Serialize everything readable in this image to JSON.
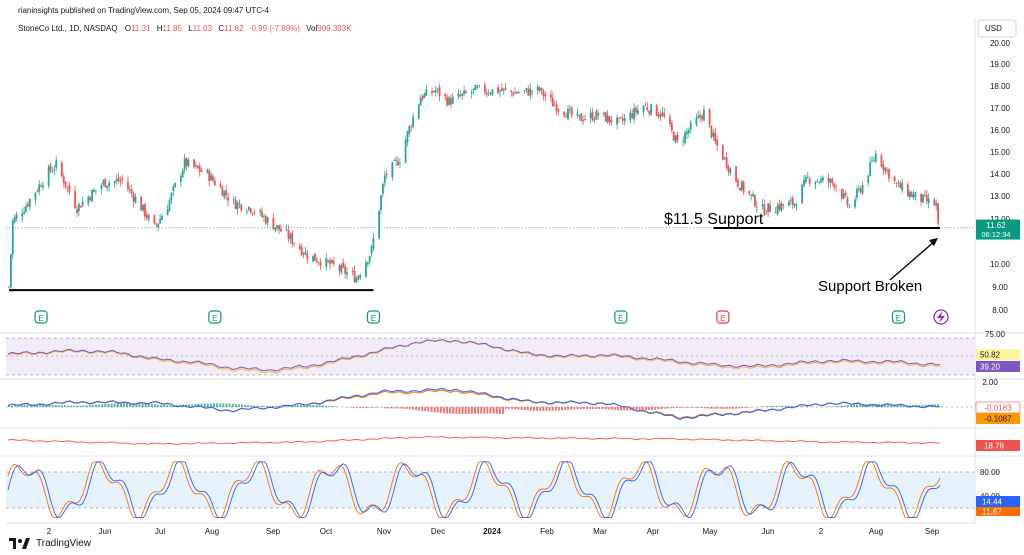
{
  "header": {
    "publisher": "rianinsights published on TradingView.com, Sep 05, 2024 09:47 UTC-4",
    "symbol": "StoneCo Ltd., 1D, NASDAQ",
    "o_label": "O",
    "o_value": "11.31",
    "h_label": "H",
    "h_value": "11.85",
    "l_label": "L",
    "l_value": "11.03",
    "c_label": "C",
    "c_value": "11.62",
    "change": "-0.99 (-7.89%)",
    "vol_label": "Vol",
    "vol_value": "909.393K"
  },
  "currency": "USD",
  "annotations": {
    "support_label": "$11.5 Support",
    "broken_label": "Support Broken"
  },
  "price_badge": {
    "value": "11.62",
    "countdown": "06:12:34"
  },
  "footer": {
    "logo_text": "TradingView"
  },
  "colors": {
    "up": "#26a69a",
    "down": "#ef5350",
    "rsi_line": "#7e57c2",
    "rsi_ma": "#f2b544",
    "macd_line": "#2962ff",
    "signal_line": "#ff6d00",
    "red_line": "#ef5350",
    "stoch_k": "#2962ff",
    "stoch_d": "#ff6d00",
    "badge_green": "#089981",
    "rsi_badge_yellow": "#fff59d",
    "rsi_badge_purple": "#7e57c2",
    "earn_green": "#089981",
    "earn_red": "#f23645"
  },
  "chart_data": [
    {
      "type": "candlestick",
      "title": "StoneCo Ltd., 1D, NASDAQ",
      "ylim": [
        8,
        20
      ],
      "y_ticks": [
        "20.00",
        "19.00",
        "18.00",
        "17.00",
        "16.00",
        "15.00",
        "14.00",
        "13.00",
        "12.00",
        "10.00",
        "9.00",
        "8.00"
      ],
      "x_ticks": [
        "2",
        "Jun",
        "Jul",
        "Aug",
        "Sep",
        "Oct",
        "Nov",
        "Dec",
        "2024",
        "Feb",
        "Mar",
        "Apr",
        "May",
        "Jun",
        "2",
        "Aug",
        "Sep"
      ],
      "close_path": [
        [
          "2023-05-01",
          9.0
        ],
        [
          "2023-05-03",
          11.9
        ],
        [
          "2023-05-10",
          12.6
        ],
        [
          "2023-05-22",
          14.1
        ],
        [
          "2023-05-26",
          14.4
        ],
        [
          "2023-06-06",
          12.5
        ],
        [
          "2023-06-20",
          13.6
        ],
        [
          "2023-06-30",
          13.7
        ],
        [
          "2023-07-11",
          12.4
        ],
        [
          "2023-07-17",
          11.6
        ],
        [
          "2023-07-24",
          12.6
        ],
        [
          "2023-08-02",
          14.5
        ],
        [
          "2023-08-14",
          14.0
        ],
        [
          "2023-08-28",
          12.7
        ],
        [
          "2023-09-06",
          12.5
        ],
        [
          "2023-09-25",
          11.3
        ],
        [
          "2023-10-06",
          10.4
        ],
        [
          "2023-10-20",
          9.9
        ],
        [
          "2023-11-01",
          9.4
        ],
        [
          "2023-11-09",
          10.6
        ],
        [
          "2023-11-16",
          13.9
        ],
        [
          "2023-11-24",
          14.7
        ],
        [
          "2023-11-29",
          16.1
        ],
        [
          "2023-12-05",
          17.5
        ],
        [
          "2023-12-13",
          17.8
        ],
        [
          "2023-12-20",
          17.3
        ],
        [
          "2024-01-03",
          17.8
        ],
        [
          "2024-01-16",
          17.8
        ],
        [
          "2024-01-24",
          17.7
        ],
        [
          "2024-02-06",
          17.8
        ],
        [
          "2024-02-13",
          17.2
        ],
        [
          "2024-02-26",
          16.5
        ],
        [
          "2024-03-08",
          16.7
        ],
        [
          "2024-03-19",
          16.3
        ],
        [
          "2024-04-01",
          17.1
        ],
        [
          "2024-04-11",
          16.7
        ],
        [
          "2024-04-19",
          15.4
        ],
        [
          "2024-05-03",
          16.8
        ],
        [
          "2024-05-09",
          15.4
        ],
        [
          "2024-05-21",
          13.6
        ],
        [
          "2024-06-03",
          12.4
        ],
        [
          "2024-06-20",
          12.7
        ],
        [
          "2024-06-27",
          13.8
        ],
        [
          "2024-07-11",
          13.6
        ],
        [
          "2024-07-19",
          12.5
        ],
        [
          "2024-07-26",
          13.5
        ],
        [
          "2024-08-02",
          14.9
        ],
        [
          "2024-08-13",
          13.5
        ],
        [
          "2024-08-22",
          13.0
        ],
        [
          "2024-09-03",
          12.6
        ],
        [
          "2024-09-04",
          11.62
        ]
      ],
      "support_lines": [
        {
          "from": "2023-05-01",
          "to": "2023-11-10",
          "value": 9.3
        },
        {
          "from": "2024-05-08",
          "to": "2024-09-05",
          "value": 11.6
        }
      ],
      "price_marker": {
        "label": "12.00 region",
        "value": 11.62
      },
      "earnings_markers": [
        {
          "date": "2023-05-18",
          "result": "beat",
          "label": "E"
        },
        {
          "date": "2023-08-18",
          "result": "beat",
          "label": "E"
        },
        {
          "date": "2023-11-10",
          "result": "beat",
          "label": "E"
        },
        {
          "date": "2024-03-20",
          "result": "beat",
          "label": "E"
        },
        {
          "date": "2024-05-13",
          "result": "miss",
          "label": "E"
        },
        {
          "date": "2024-08-14",
          "result": "beat",
          "label": "E"
        }
      ]
    },
    {
      "type": "line",
      "title": "RSI",
      "ylim": [
        25,
        75
      ],
      "y_ticks": [
        "75.00"
      ],
      "last_values": [
        "50.82",
        "39.20"
      ],
      "rsi_path": [
        [
          0,
          55
        ],
        [
          5,
          58
        ],
        [
          10,
          60
        ],
        [
          15,
          57
        ],
        [
          20,
          48
        ],
        [
          25,
          44
        ],
        [
          30,
          36
        ],
        [
          35,
          33
        ],
        [
          40,
          38
        ],
        [
          45,
          48
        ],
        [
          50,
          60
        ],
        [
          55,
          72
        ],
        [
          60,
          74
        ],
        [
          65,
          66
        ],
        [
          70,
          55
        ],
        [
          75,
          52
        ],
        [
          80,
          54
        ],
        [
          85,
          50
        ],
        [
          90,
          45
        ],
        [
          95,
          40
        ],
        [
          100,
          38
        ],
        [
          110,
          46
        ],
        [
          120,
          44
        ],
        [
          125,
          40
        ]
      ]
    },
    {
      "type": "line",
      "title": "MACD",
      "y_ticks": [
        "2.00"
      ],
      "last_values": [
        "-0.0183",
        "-0.1087"
      ],
      "macd_path": [
        [
          0,
          0.1
        ],
        [
          10,
          0.4
        ],
        [
          20,
          0.3
        ],
        [
          30,
          -0.3
        ],
        [
          40,
          0.2
        ],
        [
          50,
          1.2
        ],
        [
          60,
          1.4
        ],
        [
          70,
          0.4
        ],
        [
          80,
          0.3
        ],
        [
          90,
          -0.9
        ],
        [
          100,
          -0.4
        ],
        [
          110,
          0.3
        ],
        [
          125,
          0.0
        ]
      ]
    },
    {
      "type": "line",
      "title": "Indicator",
      "last_values": [
        "18.76"
      ],
      "line_path": [
        [
          0,
          22
        ],
        [
          20,
          18
        ],
        [
          40,
          20
        ],
        [
          55,
          25
        ],
        [
          70,
          24
        ],
        [
          90,
          23
        ],
        [
          110,
          20
        ],
        [
          125,
          19
        ]
      ]
    },
    {
      "type": "line",
      "title": "Stochastic",
      "ylim": [
        0,
        100
      ],
      "y_ticks": [
        "80.00",
        "40.00"
      ],
      "last_values": [
        "14.44",
        "11.67"
      ]
    }
  ]
}
